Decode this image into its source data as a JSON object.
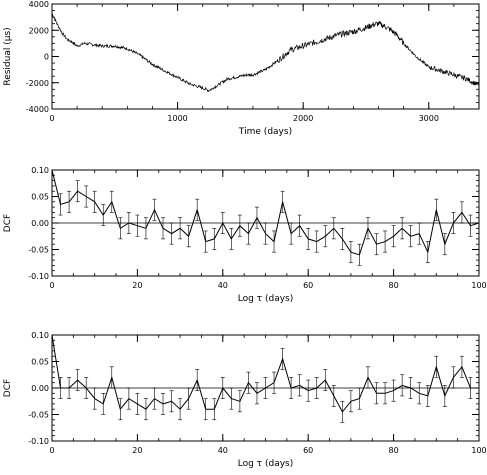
{
  "chart_data": [
    {
      "type": "line",
      "xlabel": "Time (days)",
      "ylabel": "Residual (μs)",
      "xlim": [
        0,
        3400
      ],
      "ylim": [
        -4000,
        4000
      ],
      "xticks": [
        "0",
        "1000",
        "2000",
        "3000"
      ],
      "yticks": [
        "-4000",
        "-2000",
        "0",
        "2000",
        "4000"
      ],
      "series": [
        {
          "x": [
            0,
            40,
            80,
            120,
            160,
            200,
            260,
            330,
            400,
            500,
            600,
            700,
            800,
            900,
            1000,
            1100,
            1200,
            1250,
            1300,
            1350,
            1400,
            1450,
            1500,
            1550,
            1600,
            1700,
            1800,
            1900,
            2000,
            2100,
            2200,
            2300,
            2400,
            2500,
            2550,
            2600,
            2650,
            2700,
            2750,
            2800,
            2900,
            3000,
            3100,
            3200,
            3300,
            3400
          ],
          "y": [
            3300,
            2500,
            1800,
            1300,
            1100,
            800,
            1000,
            900,
            800,
            800,
            600,
            100,
            -600,
            -1100,
            -1600,
            -2100,
            -2400,
            -2600,
            -2300,
            -2000,
            -1700,
            -1600,
            -1500,
            -1400,
            -1400,
            -1000,
            -300,
            500,
            800,
            1100,
            1400,
            1700,
            1900,
            2200,
            2400,
            2500,
            2300,
            2000,
            1600,
            1000,
            0,
            -800,
            -1100,
            -1400,
            -1700,
            -2200
          ]
        }
      ]
    },
    {
      "type": "line",
      "xlabel": "Log τ (days)",
      "ylabel": "DCF",
      "xlim": [
        0,
        100
      ],
      "ylim": [
        -0.1,
        0.1
      ],
      "xticks": [
        "0",
        "20",
        "40",
        "60",
        "80",
        "100"
      ],
      "yticks": [
        "-0.10",
        "-0.05",
        "0.00",
        "0.05",
        "0.10"
      ],
      "reference_line": 0,
      "series": [
        {
          "x": [
            0,
            2,
            4,
            6,
            8,
            10,
            12,
            14,
            16,
            18,
            20,
            22,
            24,
            26,
            28,
            30,
            32,
            34,
            36,
            38,
            40,
            42,
            44,
            46,
            48,
            50,
            52,
            54,
            56,
            58,
            60,
            62,
            64,
            66,
            68,
            70,
            72,
            74,
            76,
            78,
            80,
            82,
            84,
            86,
            88,
            90,
            92,
            94,
            96,
            98,
            100
          ],
          "y": [
            0.1,
            0.035,
            0.04,
            0.06,
            0.05,
            0.04,
            0.015,
            0.04,
            -0.01,
            0.0,
            -0.005,
            -0.01,
            0.025,
            -0.01,
            -0.02,
            -0.01,
            -0.025,
            0.025,
            -0.035,
            -0.03,
            0.0,
            -0.03,
            -0.005,
            -0.02,
            0.01,
            -0.02,
            -0.035,
            0.04,
            -0.02,
            -0.005,
            -0.03,
            -0.035,
            -0.025,
            -0.01,
            -0.03,
            -0.055,
            -0.06,
            -0.01,
            -0.04,
            -0.035,
            -0.025,
            -0.01,
            -0.025,
            -0.02,
            -0.055,
            0.025,
            -0.04,
            0.0,
            0.02,
            -0.005,
            0.0
          ],
          "error": [
            0.0,
            0.02,
            0.02,
            0.02,
            0.02,
            0.02,
            0.02,
            0.02,
            0.02,
            0.02,
            0.02,
            0.02,
            0.02,
            0.02,
            0.02,
            0.02,
            0.02,
            0.02,
            0.02,
            0.02,
            0.02,
            0.02,
            0.02,
            0.02,
            0.02,
            0.02,
            0.02,
            0.02,
            0.02,
            0.02,
            0.02,
            0.02,
            0.02,
            0.02,
            0.02,
            0.02,
            0.02,
            0.02,
            0.02,
            0.02,
            0.02,
            0.02,
            0.02,
            0.02,
            0.02,
            0.02,
            0.02,
            0.02,
            0.02,
            0.02,
            0.02
          ]
        }
      ]
    },
    {
      "type": "line",
      "xlabel": "Log τ (days)",
      "ylabel": "DCF",
      "xlim": [
        0,
        100
      ],
      "ylim": [
        -0.1,
        0.1
      ],
      "xticks": [
        "0",
        "20",
        "40",
        "60",
        "80",
        "100"
      ],
      "yticks": [
        "-0.10",
        "-0.05",
        "0.00",
        "0.05",
        "0.10"
      ],
      "reference_line": 0,
      "series": [
        {
          "x": [
            0,
            2,
            4,
            6,
            8,
            10,
            12,
            14,
            16,
            18,
            20,
            22,
            24,
            26,
            28,
            30,
            32,
            34,
            36,
            38,
            40,
            42,
            44,
            46,
            48,
            50,
            52,
            54,
            56,
            58,
            60,
            62,
            64,
            66,
            68,
            70,
            72,
            74,
            76,
            78,
            80,
            82,
            84,
            86,
            88,
            90,
            92,
            94,
            96,
            98,
            100
          ],
          "y": [
            0.1,
            0.0,
            0.0,
            0.015,
            0.0,
            -0.02,
            -0.03,
            0.02,
            -0.04,
            -0.02,
            -0.03,
            -0.04,
            -0.02,
            -0.03,
            -0.025,
            -0.04,
            -0.02,
            0.015,
            -0.04,
            -0.04,
            0.0,
            -0.02,
            -0.025,
            0.01,
            -0.01,
            0.0,
            0.01,
            0.055,
            0.0,
            0.005,
            -0.005,
            0.0,
            0.015,
            -0.015,
            -0.045,
            -0.025,
            -0.02,
            0.02,
            -0.01,
            -0.01,
            -0.005,
            0.005,
            0.0,
            -0.01,
            -0.015,
            0.04,
            -0.015,
            0.02,
            0.04,
            0.0,
            0.0
          ],
          "error": [
            0.0,
            0.02,
            0.02,
            0.02,
            0.02,
            0.02,
            0.02,
            0.02,
            0.02,
            0.02,
            0.02,
            0.02,
            0.02,
            0.02,
            0.02,
            0.02,
            0.02,
            0.02,
            0.02,
            0.02,
            0.02,
            0.02,
            0.02,
            0.02,
            0.02,
            0.02,
            0.02,
            0.02,
            0.02,
            0.02,
            0.02,
            0.02,
            0.02,
            0.02,
            0.02,
            0.02,
            0.02,
            0.02,
            0.02,
            0.02,
            0.02,
            0.02,
            0.02,
            0.02,
            0.02,
            0.02,
            0.02,
            0.02,
            0.02,
            0.02,
            0.02
          ]
        }
      ]
    }
  ]
}
